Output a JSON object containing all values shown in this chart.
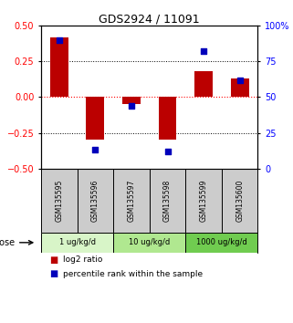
{
  "title": "GDS2924 / 11091",
  "samples": [
    "GSM135595",
    "GSM135596",
    "GSM135597",
    "GSM135598",
    "GSM135599",
    "GSM135600"
  ],
  "log2_ratio": [
    0.42,
    -0.3,
    -0.05,
    -0.3,
    0.18,
    0.13
  ],
  "percentile_rank": [
    90,
    13,
    44,
    12,
    82,
    62
  ],
  "dose_groups": [
    {
      "label": "1 ug/kg/d",
      "samples": [
        0,
        1
      ],
      "color": "#d8f5c8"
    },
    {
      "label": "10 ug/kg/d",
      "samples": [
        2,
        3
      ],
      "color": "#b0e890"
    },
    {
      "label": "1000 ug/kg/d",
      "samples": [
        4,
        5
      ],
      "color": "#70cc50"
    }
  ],
  "ylim_left": [
    -0.5,
    0.5
  ],
  "ylim_right": [
    0,
    100
  ],
  "bar_color": "#bb0000",
  "dot_color": "#0000bb",
  "bar_width": 0.5,
  "dot_size": 22,
  "yticks_left": [
    -0.5,
    -0.25,
    0,
    0.25,
    0.5
  ],
  "yticks_right": [
    0,
    25,
    50,
    75,
    100
  ],
  "ytick_labels_right": [
    "0",
    "25",
    "50",
    "75",
    "100%"
  ],
  "hlines_dotted": [
    -0.25,
    0.25
  ],
  "hline_zero_color": "#ff0000",
  "hline_dotted_color": "#000000",
  "legend_log2": "log2 ratio",
  "legend_pct": "percentile rank within the sample",
  "sample_box_color": "#cccccc",
  "dose_label": "dose"
}
